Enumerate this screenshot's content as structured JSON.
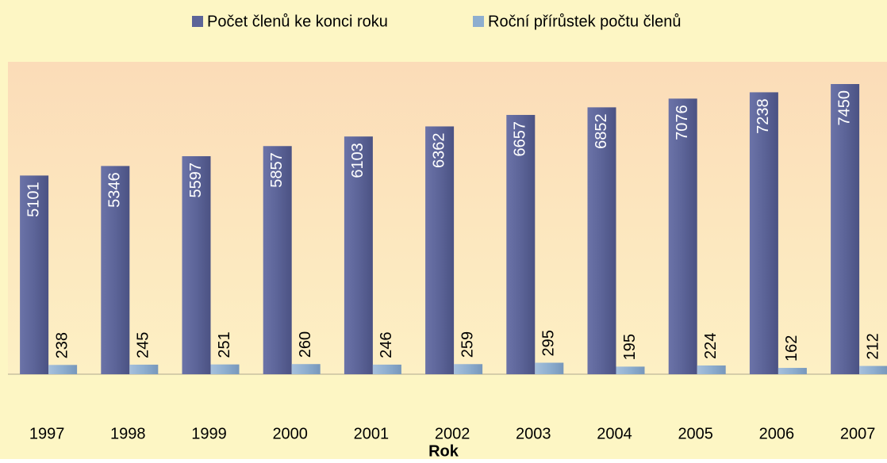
{
  "chart_data": {
    "type": "bar",
    "x_label": "Rok",
    "categories": [
      "1997",
      "1998",
      "1999",
      "2000",
      "2001",
      "2002",
      "2003",
      "2004",
      "2005",
      "2006",
      "2007"
    ],
    "series": [
      {
        "name": "Počet členů ke konci roku",
        "color": "#5c6498",
        "values": [
          5101,
          5346,
          5597,
          5857,
          6103,
          6362,
          6657,
          6852,
          7076,
          7238,
          7450
        ]
      },
      {
        "name": "Roční přírůstek počtu členů",
        "color": "#8eaecf",
        "values": [
          238,
          245,
          251,
          260,
          246,
          259,
          295,
          195,
          224,
          162,
          212
        ]
      }
    ],
    "legend": "top"
  }
}
